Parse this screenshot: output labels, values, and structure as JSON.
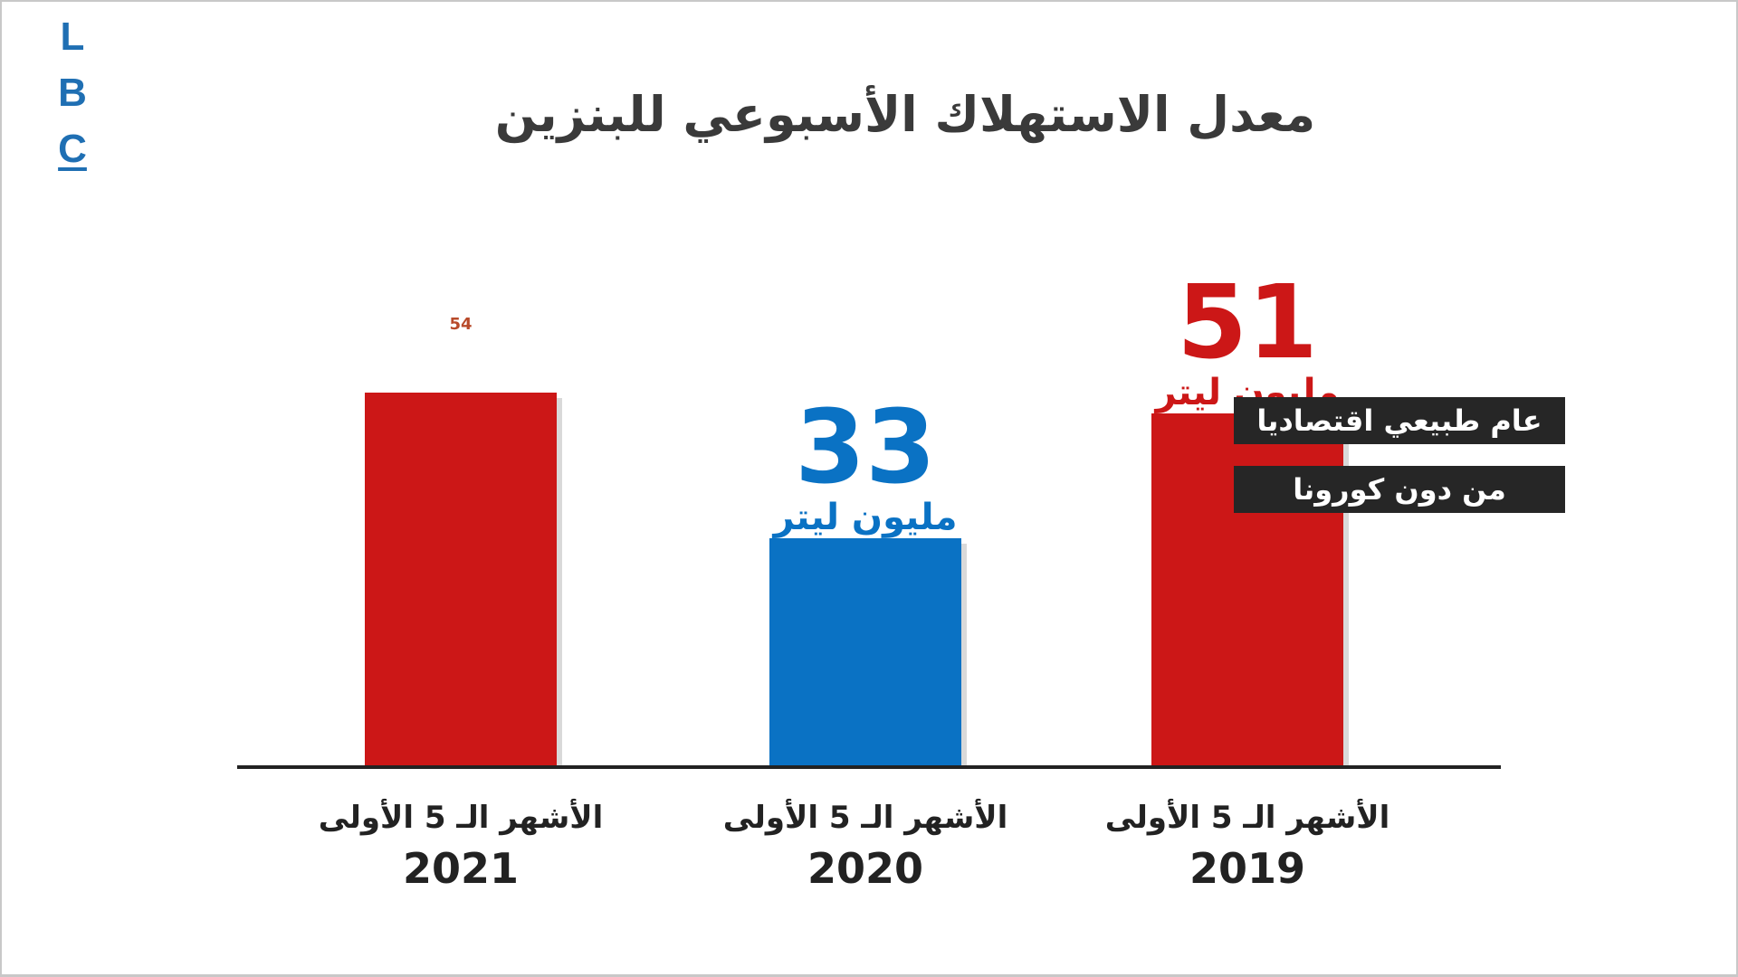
{
  "logo": {
    "letters": [
      "L",
      "B",
      "C"
    ]
  },
  "chart_data": {
    "type": "bar",
    "title": "معدل الاستهلاك الأسبوعي للبنزين",
    "unit": "مليون ليتر",
    "categories": [
      {
        "line1": "الأشهر الـ 5 الأولى",
        "line2": "2021"
      },
      {
        "line1": "الأشهر الـ 5 الأولى",
        "line2": "2020"
      },
      {
        "line1": "الأشهر الـ 5 الأولى",
        "line2": "2019"
      }
    ],
    "values": [
      54,
      33,
      51
    ],
    "value_labels": [
      "54",
      "33",
      "51"
    ],
    "unit_labels": [
      "",
      "مليون ليتر",
      "مليون ليتر"
    ],
    "ylim": [
      0,
      60
    ],
    "colors": [
      "#cc1717",
      "#0a72c4",
      "#cc1717"
    ],
    "label_colors": [
      "#cc1717",
      "#0a72c4",
      "#cc1717"
    ],
    "annotations": [
      "عام طبيعي اقتصاديا",
      "من دون كورونا"
    ],
    "grid": false,
    "legend": "none"
  }
}
